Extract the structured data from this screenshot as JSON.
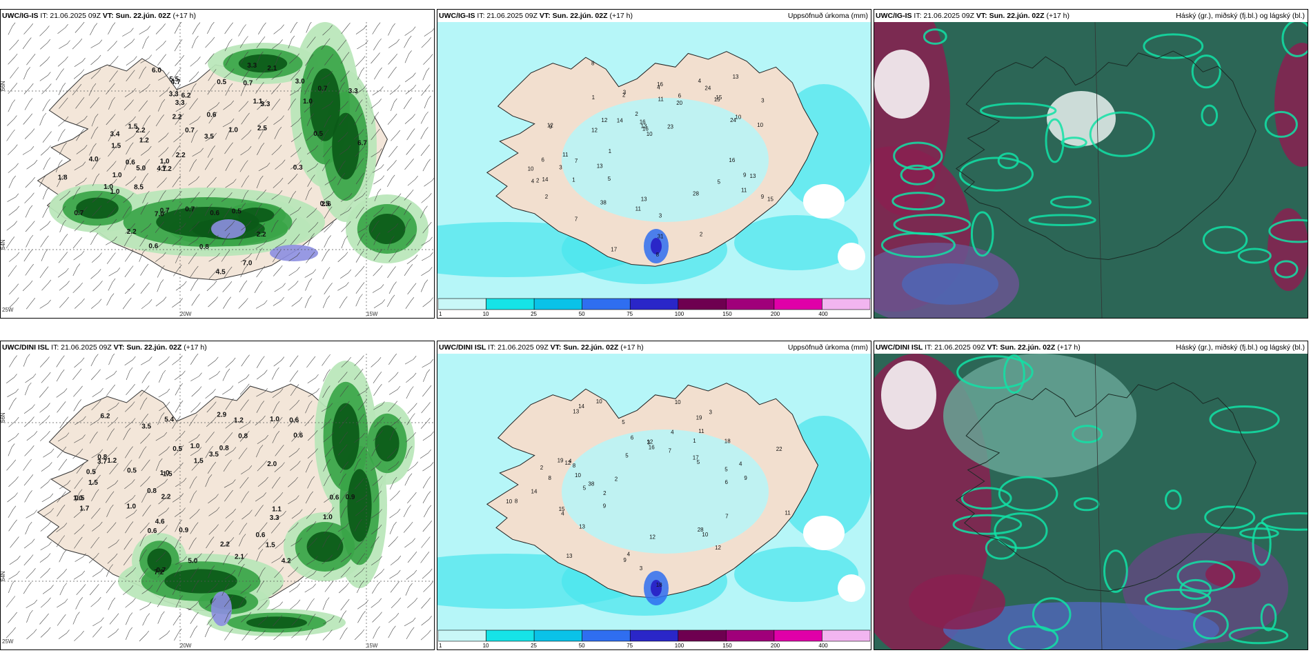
{
  "panels": [
    {
      "id": "p1",
      "kind": "wind",
      "model": "UWC/IG-IS",
      "issued": "IT: 21.06.2025 09Z",
      "vt_prefix": "VT:",
      "valid": "Sun. 22.jún. 02Z",
      "lead": "(+17 h)",
      "title_right": "",
      "lat_labels": [
        "66N",
        "64N"
      ],
      "lon_labels": [
        "25W",
        "20W",
        "15W"
      ],
      "values": [
        "1.0",
        "0.6",
        "0.5",
        "0.7",
        "1.2",
        "1.0",
        "2.2",
        "2.2",
        "1.5",
        "1.2",
        "0.5",
        "1.0",
        "1.1",
        "0.6",
        "3.0",
        "4.0",
        "7.0",
        "7.0",
        "4.7",
        "5.0",
        "6.0",
        "0.7",
        "6.7",
        "6.2",
        "3.4",
        "8.5",
        "3.3",
        "0.6",
        "1.0",
        "0.7",
        "3.3",
        "3.3",
        "2.2",
        "1.5",
        "0.7",
        "2.6",
        "5.5",
        "0.5",
        "3.3",
        "2.5",
        "0.7",
        "4.5",
        "1.0",
        "0.8",
        "4.7",
        "2.2",
        "0.7",
        "2.1",
        "3.5",
        "0.5",
        "3.3",
        "0.6",
        "0.3",
        "2.2",
        "1.0",
        "1.8"
      ]
    },
    {
      "id": "p2",
      "kind": "precip",
      "model": "UWC/IG-IS",
      "issued": "IT: 21.06.2025 09Z",
      "vt_prefix": "VT:",
      "valid": "Sun. 22.jún. 02Z",
      "lead": "(+17 h)",
      "title_right": "Uppsöfnuð úrkoma (mm)",
      "values": [
        "2",
        "1",
        "3",
        "2",
        "3",
        "4",
        "6",
        "9",
        "7",
        "9",
        "8",
        "12",
        "11",
        "12",
        "13",
        "15",
        "16",
        "14",
        "11",
        "16",
        "23",
        "28",
        "31",
        "10",
        "15",
        "13",
        "17",
        "24",
        "38",
        "24",
        "10",
        "8",
        "11",
        "20",
        "13",
        "16",
        "6",
        "10",
        "9",
        "12",
        "5",
        "4",
        "14",
        "15",
        "16",
        "13",
        "11",
        "13",
        "2",
        "3",
        "2",
        "4",
        "2",
        "1",
        "7",
        "5",
        "10",
        "3",
        "1"
      ]
    },
    {
      "id": "p3",
      "kind": "cloud",
      "model": "UWC/IG-IS",
      "issued": "IT: 21.06.2025 09Z",
      "vt_prefix": "VT:",
      "valid": "Sun. 22.jún. 02Z",
      "lead": "(+17 h)",
      "title_right": "Háský (gr.), miðský (fj.bl.) og lágský (bl.)"
    },
    {
      "id": "p4",
      "kind": "wind",
      "model": "UWC/DINI ISL",
      "issued": "IT: 21.06.2025 09Z",
      "vt_prefix": "VT:",
      "valid": "Sun. 22.jún. 02Z",
      "lead": "(+17 h)",
      "title_right": "",
      "lat_labels": [
        "66N",
        "64N"
      ],
      "lon_labels": [
        "25W",
        "20W",
        "15W"
      ],
      "values": [
        "0.8",
        "0.8",
        "1.5",
        "1.1",
        "0.6",
        "3.5",
        "2.2",
        "2.9",
        "4.2",
        "7.2",
        "3.3",
        "2.0",
        "1.0",
        "0.7",
        "0.5",
        "0.8",
        "0.5",
        "0.6",
        "1.0",
        "6.2",
        "5.4",
        "1.5",
        "1.0",
        "0.6",
        "1.0",
        "1.5",
        "1.2",
        "0.9",
        "1.0",
        "4.6",
        "5.0",
        "3.7",
        "3.5",
        "0.5",
        "2.2",
        "2.1",
        "0.9",
        "1.0",
        "0.6",
        "1.2",
        "0.5",
        "0.6",
        "1.7",
        "0.8",
        "1.5"
      ]
    },
    {
      "id": "p5",
      "kind": "precip",
      "model": "UWC/DINI ISL",
      "issued": "IT: 21.06.2025 09Z",
      "vt_prefix": "VT:",
      "valid": "Sun. 22.jún. 02Z",
      "lead": "(+17 h)",
      "title_right": "Uppsöfnuð úrkoma (mm)",
      "values": [
        "5",
        "10",
        "10",
        "13",
        "14",
        "16",
        "18",
        "15",
        "12",
        "12",
        "11",
        "7",
        "5",
        "9",
        "28",
        "17",
        "19",
        "38",
        "19",
        "22",
        "10",
        "5",
        "4",
        "2",
        "2",
        "3",
        "6",
        "8",
        "6",
        "4",
        "12",
        "14",
        "13",
        "11",
        "8",
        "5",
        "13",
        "18",
        "10",
        "9",
        "4",
        "3",
        "2",
        "12",
        "9",
        "7",
        "4",
        "4",
        "8",
        "5",
        "10",
        "3",
        "1"
      ]
    },
    {
      "id": "p6",
      "kind": "cloud",
      "model": "UWC/DINI ISL",
      "issued": "IT: 21.06.2025 09Z",
      "vt_prefix": "VT:",
      "valid": "Sun. 22.jún. 02Z",
      "lead": "(+17 h)",
      "title_right": "Háský (gr.), miðský (fj.bl.) og lágský (bl.)"
    }
  ],
  "precip_scale": {
    "ticks": [
      "1",
      "10",
      "25",
      "50",
      "75",
      "100",
      "150",
      "200",
      "400"
    ],
    "colors": [
      "#c9f7f7",
      "#16e3e7",
      "#0ac2e8",
      "#2f6ef0",
      "#2a26c8",
      "#6e0050",
      "#a0007a",
      "#e000a8",
      "#f2b5f0"
    ]
  },
  "colors": {
    "land": "#f3e6d9",
    "sea_precip": "#b6f6f8",
    "precip_light": "#48e6ec",
    "wind_green_dark": "#0b5a18",
    "wind_green_mid": "#3aa548",
    "wind_green_light": "#b9e6b8",
    "cloud_bg": "#2c6656",
    "cloud_teal": "#12e2a6",
    "cloud_maroon": "#8a2050",
    "cloud_blue": "#4f66b5"
  }
}
